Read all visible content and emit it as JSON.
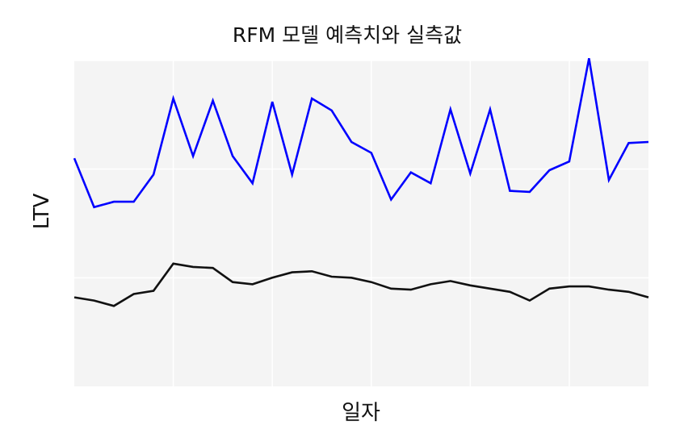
{
  "chart_data": {
    "type": "line",
    "title": "RFM 모델 예측치와 실측값",
    "xlabel": "일자",
    "ylabel": "LTV",
    "x": [
      0,
      1,
      2,
      3,
      4,
      5,
      6,
      7,
      8,
      9,
      10,
      11,
      12,
      13,
      14,
      15,
      16,
      17,
      18,
      19,
      20,
      21,
      22,
      23,
      24,
      25,
      26,
      27,
      28,
      29
    ],
    "xlim": [
      0,
      29
    ],
    "ylim": [
      0,
      300
    ],
    "grid": true,
    "tick_labels_visible": false,
    "series": [
      {
        "color": "#0000ff",
        "values": [
          210,
          165,
          170,
          170,
          195,
          265,
          212,
          263,
          212,
          187,
          262,
          195,
          265,
          254,
          225,
          215,
          172,
          197,
          187,
          255,
          196,
          255,
          180,
          179,
          199,
          207,
          302,
          190,
          224,
          225
        ]
      },
      {
        "color": "#111111",
        "values": [
          82,
          79,
          74,
          85,
          88,
          113,
          110,
          109,
          96,
          94,
          100,
          105,
          106,
          101,
          100,
          96,
          90,
          89,
          94,
          97,
          93,
          90,
          87,
          79,
          90,
          92,
          92,
          89,
          87,
          82
        ]
      }
    ]
  }
}
